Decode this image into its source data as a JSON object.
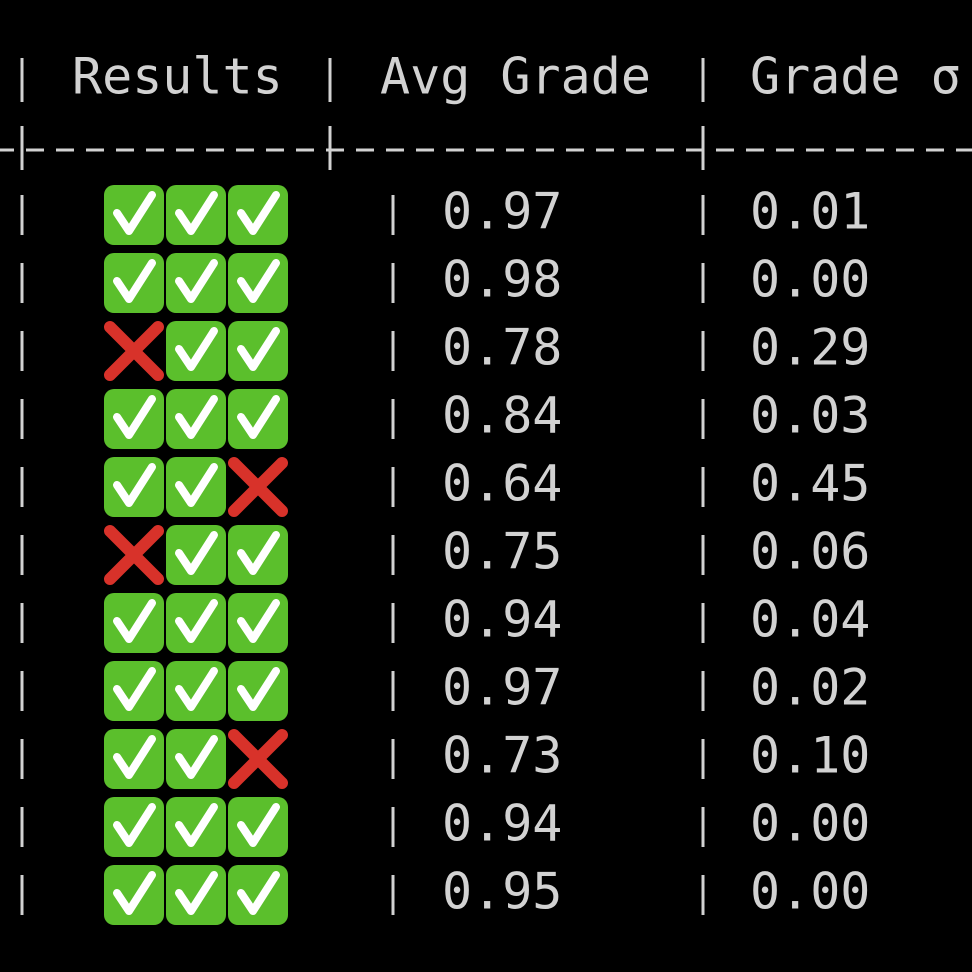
{
  "header": [
    "Results",
    "Avg Grade",
    "Grade σ"
  ],
  "rows": [
    {
      "results": [
        true,
        true,
        true
      ],
      "avg": "0.97",
      "sigma": "0.01"
    },
    {
      "results": [
        true,
        true,
        true
      ],
      "avg": "0.98",
      "sigma": "0.00"
    },
    {
      "results": [
        false,
        true,
        true
      ],
      "avg": "0.78",
      "sigma": "0.29"
    },
    {
      "results": [
        true,
        true,
        true
      ],
      "avg": "0.84",
      "sigma": "0.03"
    },
    {
      "results": [
        true,
        true,
        false
      ],
      "avg": "0.64",
      "sigma": "0.45"
    },
    {
      "results": [
        false,
        true,
        true
      ],
      "avg": "0.75",
      "sigma": "0.06"
    },
    {
      "results": [
        true,
        true,
        true
      ],
      "avg": "0.94",
      "sigma": "0.04"
    },
    {
      "results": [
        true,
        true,
        true
      ],
      "avg": "0.97",
      "sigma": "0.02"
    },
    {
      "results": [
        true,
        true,
        false
      ],
      "avg": "0.73",
      "sigma": "0.10"
    },
    {
      "results": [
        true,
        true,
        true
      ],
      "avg": "0.94",
      "sigma": "0.00"
    },
    {
      "results": [
        true,
        true,
        true
      ],
      "avg": "0.95",
      "sigma": "0.00"
    }
  ]
}
